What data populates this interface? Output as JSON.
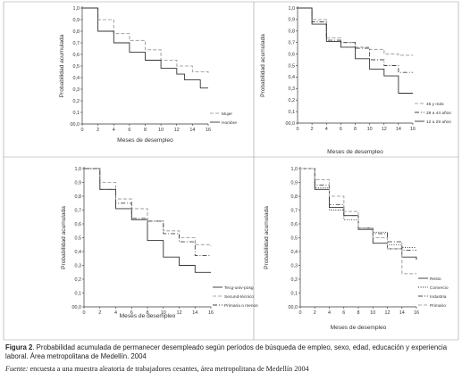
{
  "figure": {
    "label": "Figura 2",
    "caption": ". Probabilidad acumulada de permanecer desempleado según períodos de búsqueda de empleo, sexo, edad, educación y experiencia laboral. Área metropolitana de Medellín. 2004",
    "source_label": "Fuente:",
    "source_text": " encuesta a una muestra aleatoria de trabajadores cesantes, área metropolitana de Medellín 2004"
  },
  "chart_data": [
    {
      "type": "line",
      "step": true,
      "xlabel": "Meses de desempleo",
      "ylabel": "Probabilidad acumulada",
      "xlim": [
        0,
        16
      ],
      "ylim": [
        0,
        1
      ],
      "xticks": [
        "0",
        "2",
        "4",
        "6",
        "8",
        "10",
        "12",
        "14",
        "16"
      ],
      "yticks": [
        "00,0",
        "0,1",
        "0,2",
        "0,3",
        "0,4",
        "0,5",
        "0,6",
        "0,7",
        "0,8",
        "0,9",
        "1,0"
      ],
      "series": [
        {
          "name": "Mujer",
          "style": "dashed",
          "color": "#aaaaaa",
          "x": [
            0,
            2,
            4,
            5,
            6,
            8,
            10,
            12,
            14,
            16
          ],
          "y": [
            1.0,
            0.9,
            0.78,
            0.78,
            0.72,
            0.64,
            0.55,
            0.5,
            0.45,
            0.44
          ]
        },
        {
          "name": "Hombre",
          "style": "solid",
          "color": "#333333",
          "x": [
            0,
            2,
            4,
            5,
            6,
            8,
            10,
            12,
            13,
            14,
            15,
            16
          ],
          "y": [
            1.0,
            0.8,
            0.7,
            0.7,
            0.62,
            0.55,
            0.48,
            0.43,
            0.38,
            0.38,
            0.31,
            0.31
          ]
        }
      ],
      "legend": "bottom-right"
    },
    {
      "type": "line",
      "step": true,
      "xlabel": "Meses de desempleo",
      "ylabel": "Probabilidad acumulada",
      "xlim": [
        0,
        16
      ],
      "ylim": [
        0,
        1
      ],
      "xticks": [
        "0",
        "2",
        "4",
        "6",
        "8",
        "10",
        "12",
        "14",
        "16"
      ],
      "yticks": [
        "00,0",
        "0,1",
        "0,2",
        "0,3",
        "0,4",
        "0,5",
        "0,6",
        "0,7",
        "0,8",
        "0,9",
        "1,0"
      ],
      "series": [
        {
          "name": "45 y más",
          "style": "dashed",
          "color": "#aaaaaa",
          "x": [
            0,
            2,
            4,
            6,
            8,
            10,
            12,
            14,
            16
          ],
          "y": [
            1.0,
            0.9,
            0.74,
            0.7,
            0.66,
            0.64,
            0.6,
            0.59,
            0.59
          ]
        },
        {
          "name": "29 a 44 años",
          "style": "dash-dot",
          "color": "#444444",
          "x": [
            0,
            2,
            4,
            6,
            8,
            10,
            12,
            14,
            16
          ],
          "y": [
            1.0,
            0.88,
            0.72,
            0.7,
            0.65,
            0.55,
            0.5,
            0.44,
            0.44
          ]
        },
        {
          "name": "12 a 28 años",
          "style": "solid",
          "color": "#333333",
          "x": [
            0,
            2,
            4,
            6,
            8,
            10,
            12,
            14,
            16
          ],
          "y": [
            1.0,
            0.86,
            0.71,
            0.66,
            0.56,
            0.47,
            0.41,
            0.26,
            0.26
          ]
        }
      ],
      "legend": "bottom-right"
    },
    {
      "type": "line",
      "step": true,
      "xlabel": "Meses de desempleo",
      "ylabel": "Probabilidad acumulada",
      "xlim": [
        0,
        16
      ],
      "ylim": [
        0,
        1
      ],
      "xticks": [
        "0",
        "2",
        "4",
        "6",
        "8",
        "10",
        "12",
        "14",
        "16"
      ],
      "yticks": [
        "00,0",
        "0,1",
        "0,2",
        "0,3",
        "0,4",
        "0,5",
        "0,6",
        "0,7",
        "0,8",
        "0,9",
        "1,0"
      ],
      "series": [
        {
          "name": "Tecg-univ-posg",
          "style": "solid",
          "color": "#333333",
          "x": [
            0,
            2,
            4,
            6,
            8,
            10,
            12,
            14,
            16
          ],
          "y": [
            1.0,
            0.85,
            0.71,
            0.63,
            0.48,
            0.36,
            0.3,
            0.25,
            0.25
          ]
        },
        {
          "name": "Secund-técnico",
          "style": "dashed",
          "color": "#aaaaaa",
          "x": [
            0,
            2,
            4,
            6,
            8,
            10,
            12,
            14,
            16
          ],
          "y": [
            1.0,
            0.9,
            0.78,
            0.71,
            0.62,
            0.55,
            0.5,
            0.45,
            0.44
          ]
        },
        {
          "name": "Primaria o menos",
          "style": "dash-dot",
          "color": "#444444",
          "x": [
            0,
            2,
            4,
            6,
            8,
            10,
            12,
            14,
            16
          ],
          "y": [
            1.0,
            0.85,
            0.75,
            0.64,
            0.62,
            0.53,
            0.47,
            0.37,
            0.37
          ]
        }
      ],
      "legend": "bottom-right"
    },
    {
      "type": "line",
      "step": true,
      "xlabel": "Meses de desempleo",
      "ylabel": "Probabilidad acumulada",
      "xlim": [
        0,
        16
      ],
      "ylim": [
        0,
        1
      ],
      "xticks": [
        "0",
        "2",
        "4",
        "6",
        "8",
        "10",
        "12",
        "14",
        "16"
      ],
      "yticks": [
        "00,0",
        "0,1",
        "0,2",
        "0,3",
        "0,4",
        "0,5",
        "0,6",
        "0,7",
        "0,8",
        "0,9",
        "1,0"
      ],
      "series": [
        {
          "name": "Resto",
          "style": "solid",
          "color": "#333333",
          "x": [
            0,
            2,
            4,
            6,
            8,
            10,
            12,
            14,
            16
          ],
          "y": [
            1.0,
            0.85,
            0.72,
            0.66,
            0.56,
            0.46,
            0.42,
            0.36,
            0.34
          ]
        },
        {
          "name": "Comercio",
          "style": "dotted",
          "color": "#222222",
          "x": [
            0,
            2,
            4,
            6,
            8,
            10,
            12,
            14,
            16
          ],
          "y": [
            1.0,
            0.86,
            0.7,
            0.63,
            0.57,
            0.54,
            0.45,
            0.43,
            0.43
          ]
        },
        {
          "name": "Industria",
          "style": "dash-dot",
          "color": "#444444",
          "x": [
            0,
            2,
            4,
            6,
            8,
            10,
            12,
            14,
            16
          ],
          "y": [
            1.0,
            0.88,
            0.74,
            0.66,
            0.57,
            0.53,
            0.47,
            0.41,
            0.41
          ]
        },
        {
          "name": "Primario",
          "style": "dashed",
          "color": "#aaaaaa",
          "x": [
            0,
            2,
            4,
            6,
            8,
            10,
            12,
            14,
            16
          ],
          "y": [
            1.0,
            0.92,
            0.8,
            0.69,
            0.57,
            0.5,
            0.42,
            0.24,
            0.24
          ]
        }
      ],
      "legend": "bottom-right"
    }
  ]
}
